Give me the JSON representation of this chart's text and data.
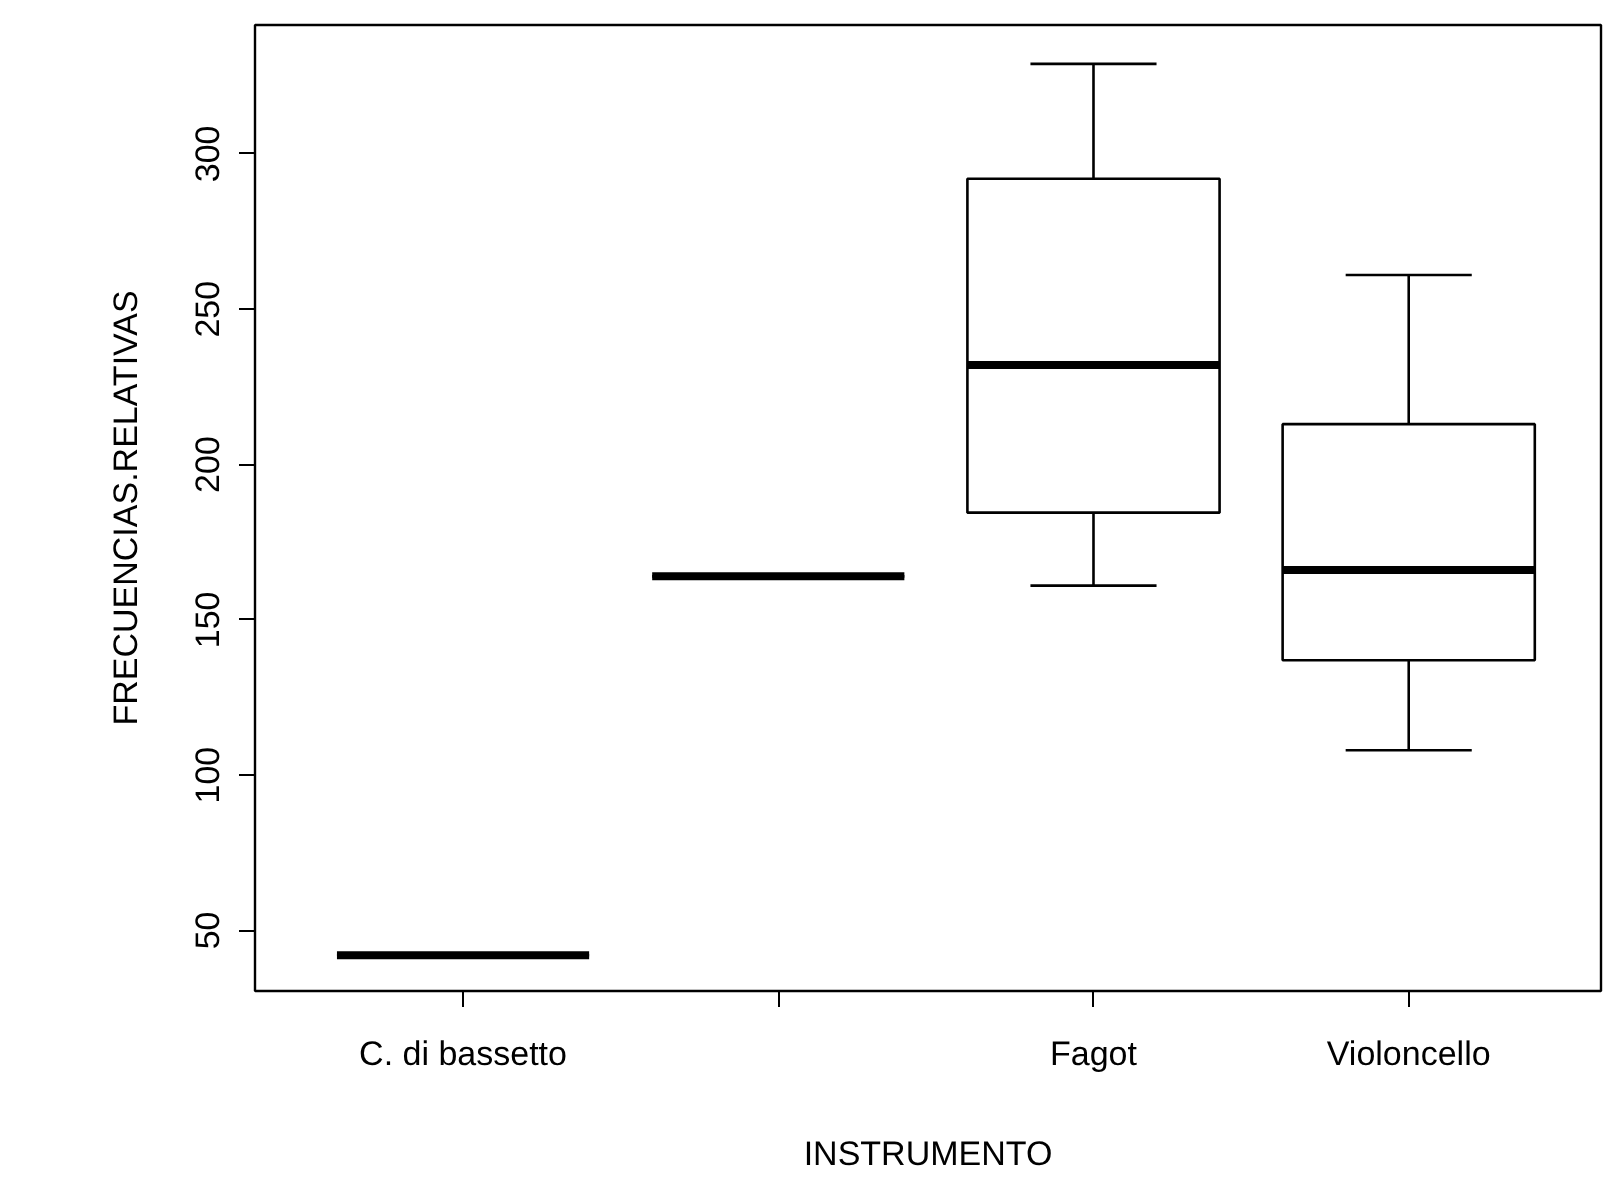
{
  "chart_data": {
    "type": "box",
    "xlabel": "INSTRUMENTO",
    "ylabel": "FRECUENCIAS.RELATIVAS",
    "categories": [
      "C. di bassetto",
      null,
      "Fagot",
      "Violoncello"
    ],
    "boxes": [
      {
        "low": 42,
        "q1": 42,
        "median": 42,
        "q3": 42,
        "high": 42
      },
      {
        "low": 164,
        "q1": 164,
        "median": 164,
        "q3": 164,
        "high": 164
      },
      {
        "low": 161,
        "q1": 184.5,
        "median": 232,
        "q3": 292,
        "high": 329
      },
      {
        "low": 108,
        "q1": 137,
        "median": 166,
        "q3": 213,
        "high": 261
      }
    ],
    "ylim": [
      30.5,
      341.5
    ],
    "yticks": [
      50,
      100,
      150,
      200,
      250,
      300
    ],
    "grid": false
  }
}
